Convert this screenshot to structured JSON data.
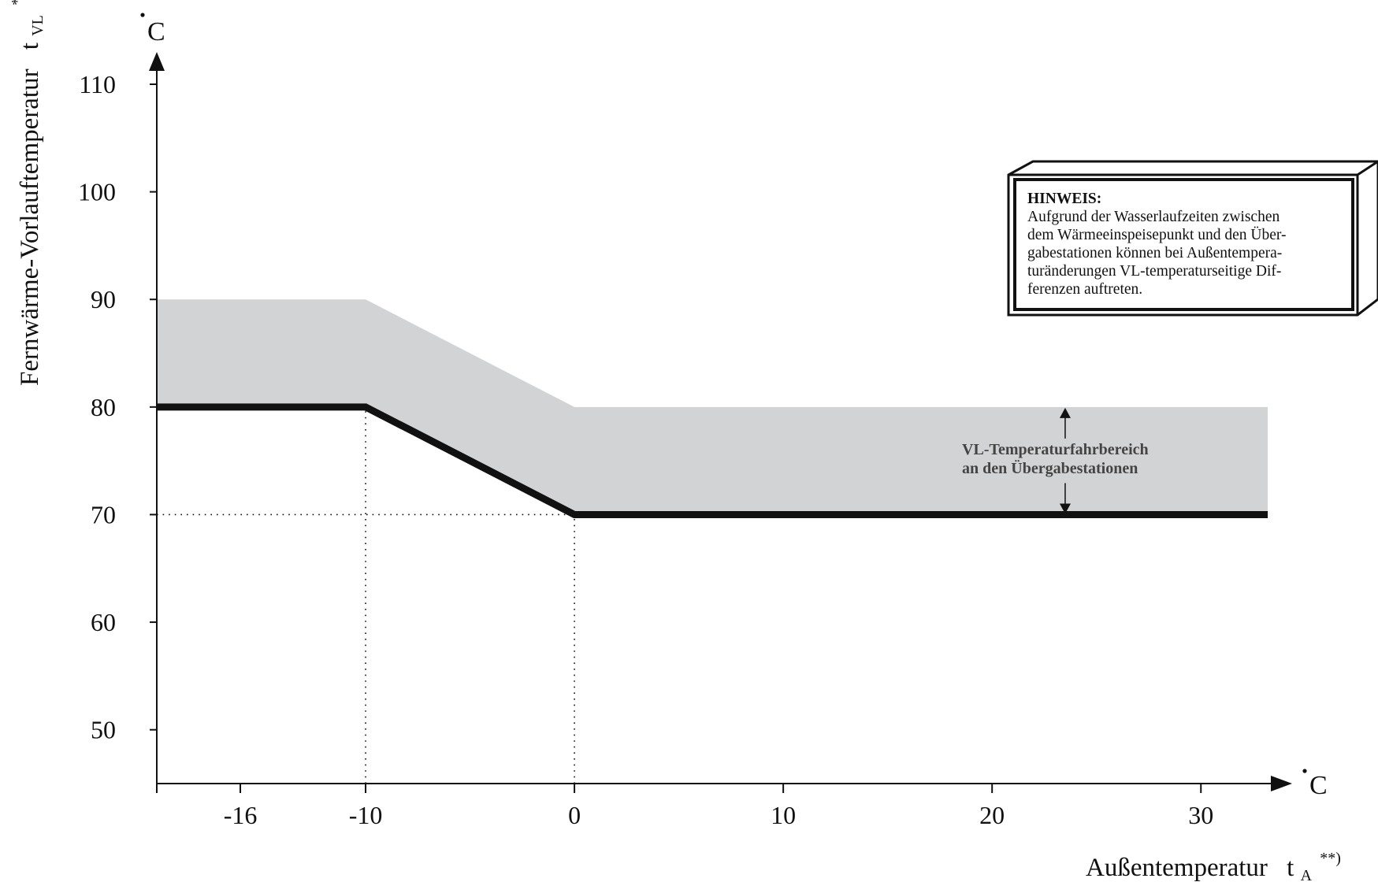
{
  "chart_data": {
    "type": "line",
    "xlabel": "Außentemperatur",
    "xlabel_symbol": "t",
    "xlabel_subscript": "A",
    "xlabel_superscript": "**)",
    "ylabel": "Fernwärme-Vorlauftemperatur",
    "ylabel_symbol": "t",
    "ylabel_subscript": "VL",
    "ylabel_superscript": "*)",
    "x_unit": "°C",
    "y_unit": "°C",
    "x_ticks": [
      -16,
      -10,
      0,
      10,
      20,
      30
    ],
    "y_ticks": [
      50,
      60,
      70,
      80,
      90,
      100,
      110
    ],
    "xlim": [
      -20,
      33.5
    ],
    "ylim": [
      45,
      113
    ],
    "grid": false,
    "series": [
      {
        "x": [
          -20,
          -10,
          0,
          33.2
        ],
        "y": [
          80,
          80,
          70,
          70
        ]
      }
    ],
    "band": {
      "x": [
        -20,
        -10,
        0,
        33.2
      ],
      "lower": [
        80,
        80,
        70,
        70
      ],
      "upper": [
        90,
        90,
        80,
        80
      ]
    },
    "reference_lines": [
      {
        "type": "horizontal",
        "y": 70,
        "x_from": -20,
        "x_to": 0
      },
      {
        "type": "vertical",
        "x": -10,
        "y_from": 45,
        "y_to": 80
      },
      {
        "type": "vertical",
        "x": 0,
        "y_from": 45,
        "y_to": 70
      }
    ],
    "annotations": [
      {
        "text_lines": [
          "VL-Temperaturfahrbereich",
          "an den Übergabestationen"
        ],
        "x": 23.5,
        "y_from": 70,
        "y_to": 80
      }
    ],
    "colors": {
      "band": "#d2d3d5",
      "line": "#111111"
    }
  },
  "note": {
    "title": "HINWEIS:",
    "lines": [
      "Aufgrund der Wasserlaufzeiten zwischen",
      "dem Wärmeeinspeisepunkt und den Über-",
      "gabestationen können bei Außentempera-",
      "turänderungen VL-temperaturseitige Dif-",
      "ferenzen auftreten."
    ]
  }
}
